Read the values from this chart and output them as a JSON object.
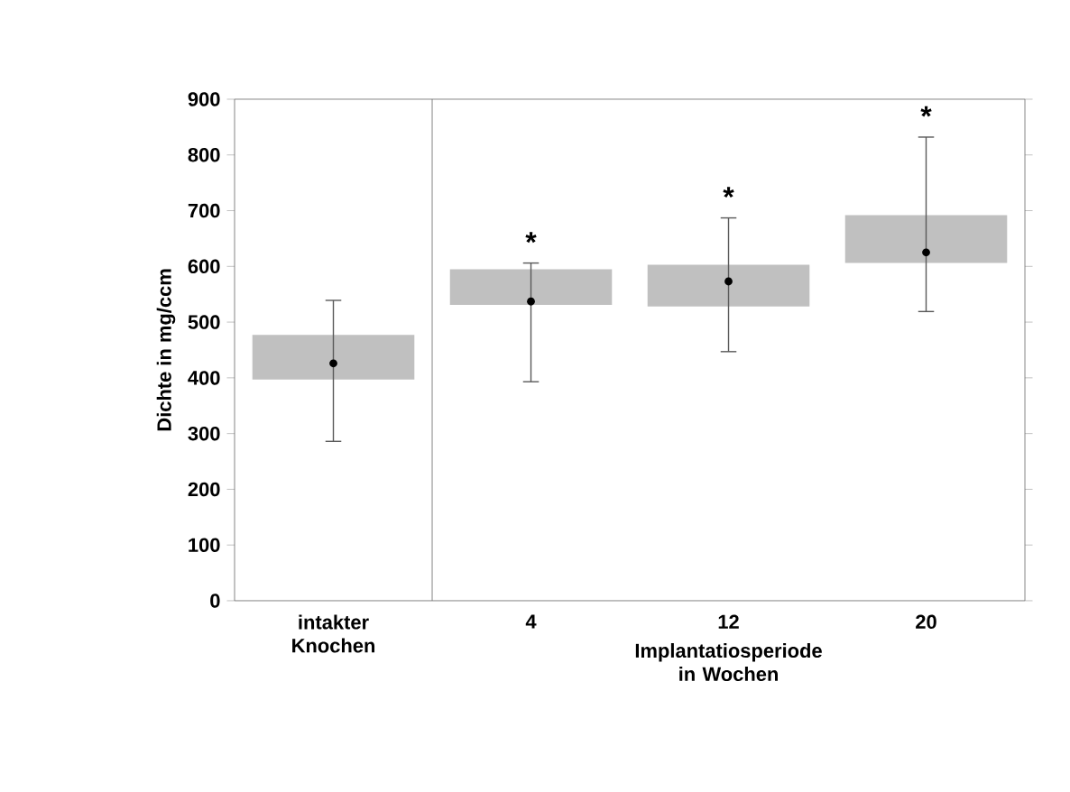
{
  "chart_data": {
    "type": "box",
    "categories": [
      "intakter Knochen",
      "4",
      "12",
      "20"
    ],
    "xlabel": "Implantatiosperiode in Wochen",
    "ylabel": "Dichte in mg/ccm",
    "boxes": [
      {
        "low": 286,
        "q1": 397,
        "median": 426,
        "q3": 477,
        "high": 539
      },
      {
        "low": 393,
        "q1": 531,
        "median": 537,
        "q3": 595,
        "high": 606
      },
      {
        "low": 447,
        "q1": 528,
        "median": 573,
        "q3": 603,
        "high": 687
      },
      {
        "low": 519,
        "q1": 606,
        "median": 625,
        "q3": 692,
        "high": 832
      }
    ],
    "color": "#c0c0c0",
    "ylim": [
      0,
      900
    ],
    "yticks": [
      0,
      100,
      200,
      300,
      400,
      500,
      600,
      700,
      800,
      900
    ],
    "annotations": [
      "*",
      "*",
      "*"
    ]
  }
}
